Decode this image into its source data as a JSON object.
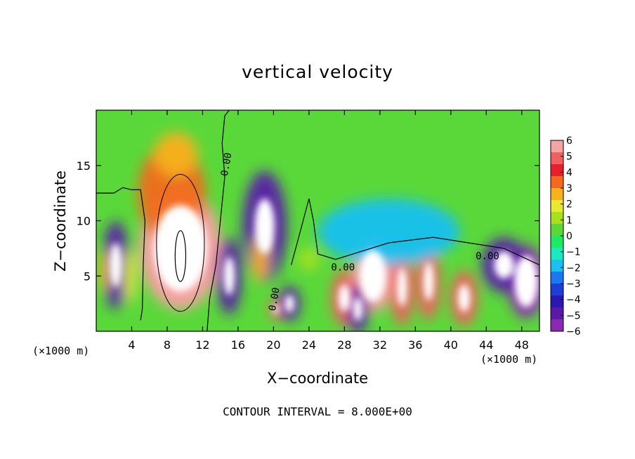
{
  "chart_data": {
    "type": "heatmap",
    "title": "vertical velocity",
    "xlabel": "X−coordinate",
    "ylabel": "Z−coordinate",
    "x_unit_left": "(×1000 m)",
    "x_unit_right": "(×1000 m)",
    "xlim": [
      0,
      50
    ],
    "ylim": [
      0,
      20
    ],
    "xticks": [
      4,
      8,
      12,
      16,
      20,
      24,
      28,
      32,
      36,
      40,
      44,
      48
    ],
    "yticks": [
      5,
      10,
      15
    ],
    "colorbar": {
      "ticks": [
        "6",
        "5",
        "4",
        "3",
        "2",
        "1",
        "0",
        "−1",
        "−2",
        "−3",
        "−4",
        "−5",
        "−6"
      ],
      "colors": [
        "#f5a3a3",
        "#f06060",
        "#e8202b",
        "#f26a1e",
        "#f5b21d",
        "#e8e832",
        "#a8e020",
        "#5ad83a",
        "#1ee864",
        "#1ae8c0",
        "#19c0f0",
        "#1a78f0",
        "#1c3fd6",
        "#2a18b0",
        "#5a1aa8",
        "#8a2ab0"
      ]
    },
    "contour_label": "0.00",
    "contour_interval_text": "CONTOUR INTERVAL = 8.000E+00",
    "blobs": [
      {
        "x": 9.5,
        "z": 7.5,
        "w": 0,
        "sx": 4.0,
        "sz": 5.0,
        "core": true
      },
      {
        "x": 8.5,
        "z": 12.5,
        "w": 4,
        "sx": 3.8,
        "sz": 4.5
      },
      {
        "x": 9.0,
        "z": 16.0,
        "w": 3,
        "sx": 2.5,
        "sz": 2.0
      },
      {
        "x": 2.2,
        "z": 6.0,
        "w": -5,
        "sx": 1.5,
        "sz": 4.0
      },
      {
        "x": 1.0,
        "z": 5.5,
        "w": 3,
        "sx": 0.6,
        "sz": 2.0
      },
      {
        "x": 3.8,
        "z": 5.0,
        "w": 2,
        "sx": 0.7,
        "sz": 2.5
      },
      {
        "x": 15.0,
        "z": 5.0,
        "w": -5,
        "sx": 1.4,
        "sz": 3.5
      },
      {
        "x": 19.0,
        "z": 9.5,
        "w": -5,
        "sx": 2.5,
        "sz": 5.0
      },
      {
        "x": 18.5,
        "z": 6.5,
        "w": 3,
        "sx": 1.0,
        "sz": 2.0
      },
      {
        "x": 20.3,
        "z": 2.0,
        "w": 5,
        "sx": 0.7,
        "sz": 1.0
      },
      {
        "x": 21.8,
        "z": 2.5,
        "w": -5,
        "sx": 1.2,
        "sz": 1.6
      },
      {
        "x": 24.0,
        "z": 6.5,
        "w": 1,
        "sx": 1.2,
        "sz": 1.0
      },
      {
        "x": 28.0,
        "z": 3.0,
        "w": 5,
        "sx": 1.5,
        "sz": 2.5
      },
      {
        "x": 31.2,
        "z": 5.0,
        "w": 0,
        "sx": 2.0,
        "sz": 3.0,
        "core": true
      },
      {
        "x": 29.5,
        "z": 2.0,
        "w": -5,
        "sx": 1.2,
        "sz": 2.2
      },
      {
        "x": 34.5,
        "z": 4.0,
        "w": 5,
        "sx": 1.3,
        "sz": 3.5
      },
      {
        "x": 37.5,
        "z": 4.5,
        "w": 5,
        "sx": 1.3,
        "sz": 3.5
      },
      {
        "x": 41.5,
        "z": 3.0,
        "w": 5,
        "sx": 1.5,
        "sz": 2.5
      },
      {
        "x": 33.0,
        "z": 9.0,
        "w": -2,
        "sx": 8.0,
        "sz": 3.0
      },
      {
        "x": 48.5,
        "z": 4.5,
        "w": 0,
        "sx": 1.8,
        "sz": 3.0,
        "core": true
      },
      {
        "x": 46.0,
        "z": 6.0,
        "w": -5,
        "sx": 2.5,
        "sz": 2.5
      }
    ]
  }
}
